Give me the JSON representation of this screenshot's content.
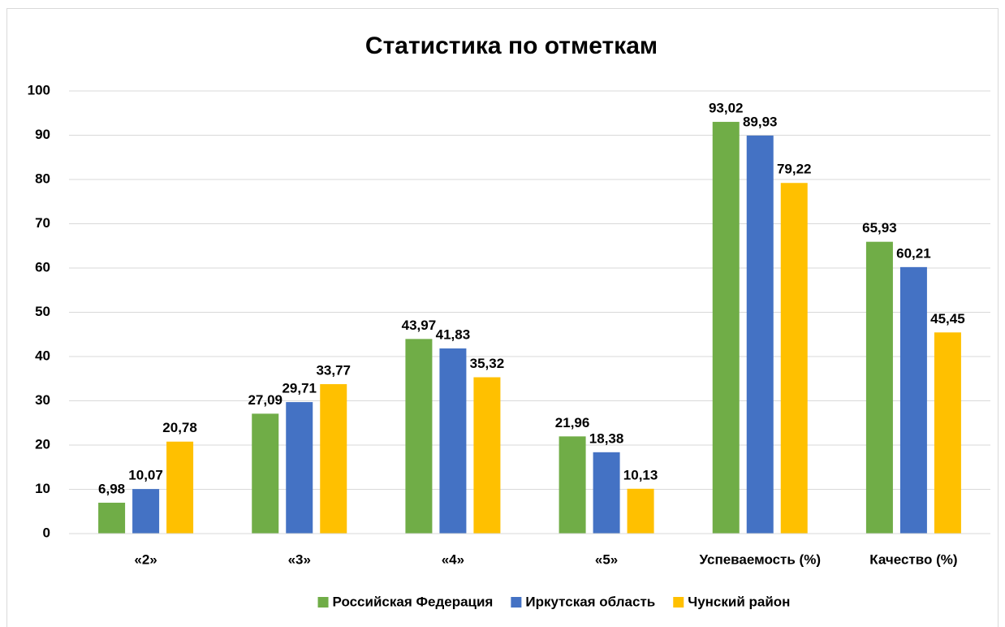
{
  "chart_data": {
    "type": "bar",
    "title": "Статистика по отметкам",
    "categories": [
      "«2»",
      "«3»",
      "«4»",
      "«5»",
      "Успеваемость (%)",
      "Качество (%)"
    ],
    "series": [
      {
        "name": "Российская Федерация",
        "color": "#70ad47",
        "values": [
          6.98,
          27.09,
          43.97,
          21.96,
          93.02,
          65.93
        ],
        "value_labels": [
          "6,98",
          "27,09",
          "43,97",
          "21,96",
          "93,02",
          "65,93"
        ]
      },
      {
        "name": "Иркутская область",
        "color": "#4472c4",
        "values": [
          10.07,
          29.71,
          41.83,
          18.38,
          89.93,
          60.21
        ],
        "value_labels": [
          "10,07",
          "29,71",
          "41,83",
          "18,38",
          "89,93",
          "60,21"
        ]
      },
      {
        "name": "Чунский район",
        "color": "#ffc000",
        "values": [
          20.78,
          33.77,
          35.32,
          10.13,
          79.22,
          45.45
        ],
        "value_labels": [
          "20,78",
          "33,77",
          "35,32",
          "10,13",
          "79,22",
          "45,45"
        ]
      }
    ],
    "ylim": [
      0,
      100
    ],
    "yticks": [
      0,
      10,
      20,
      30,
      40,
      50,
      60,
      70,
      80,
      90,
      100
    ],
    "grid": true,
    "legend": "bottom"
  }
}
